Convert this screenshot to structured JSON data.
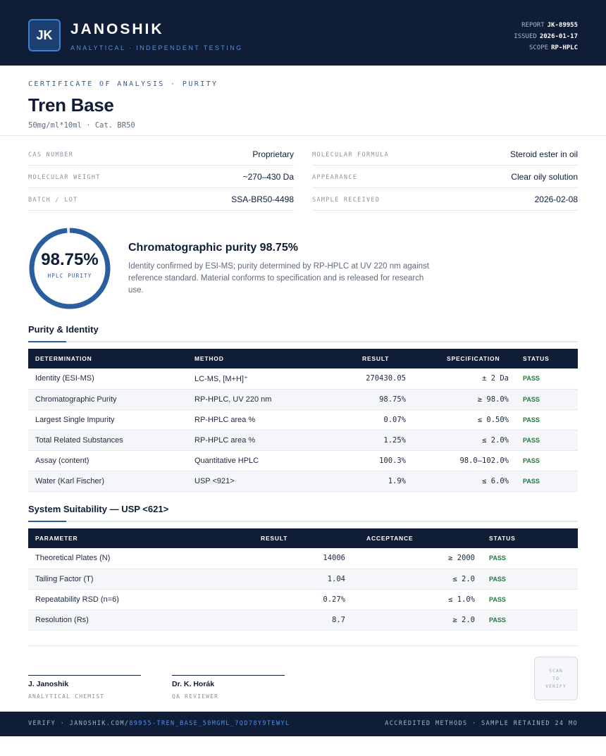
{
  "header": {
    "logo": "JK",
    "brand": "JANOSHIK",
    "tagline": "ANALYTICAL · INDEPENDENT TESTING",
    "report_label": "REPORT",
    "report_value": "JK-89955",
    "issued_label": "ISSUED",
    "issued_value": "2026-01-17",
    "scope_label": "SCOPE",
    "scope_value": "RP-HPLC"
  },
  "doc": {
    "eyebrow": "CERTIFICATE OF ANALYSIS · PURITY",
    "title": "Tren Base",
    "subtitle": "50mg/ml*10ml  ·  Cat. BR50"
  },
  "properties": [
    {
      "label": "CAS NUMBER",
      "value": "Proprietary"
    },
    {
      "label": "MOLECULAR FORMULA",
      "value": "Steroid ester in oil"
    },
    {
      "label": "MOLECULAR WEIGHT",
      "value": "~270–430 Da"
    },
    {
      "label": "APPEARANCE",
      "value": "Clear oily solution"
    },
    {
      "label": "BATCH / LOT",
      "value": "SSA-BR50-4498"
    },
    {
      "label": "SAMPLE RECEIVED",
      "value": "2026-02-08"
    }
  ],
  "purity": {
    "value_text": "98.75%",
    "fraction": 0.9875,
    "label": "HPLC PURITY",
    "summary_title": "Chromatographic purity 98.75%",
    "summary_text": "Identity confirmed by ESI-MS; purity determined by RP-HPLC at UV 220 nm against reference standard. Material conforms to specification and is released for research use."
  },
  "purity_section": {
    "title": "Purity & Identity",
    "headers": [
      "DETERMINATION",
      "METHOD",
      "RESULT",
      "SPECIFICATION",
      "STATUS"
    ],
    "rows": [
      [
        "Identity (ESI-MS)",
        "LC-MS, [M+H]⁺",
        "270430.05",
        "± 2 Da",
        "PASS"
      ],
      [
        "Chromatographic Purity",
        "RP-HPLC, UV 220 nm",
        "98.75%",
        "≥ 98.0%",
        "PASS"
      ],
      [
        "Largest Single Impurity",
        "RP-HPLC area %",
        "0.07%",
        "≤ 0.50%",
        "PASS"
      ],
      [
        "Total Related Substances",
        "RP-HPLC area %",
        "1.25%",
        "≤ 2.0%",
        "PASS"
      ],
      [
        "Assay (content)",
        "Quantitative HPLC",
        "100.3%",
        "98.0–102.0%",
        "PASS"
      ],
      [
        "Water (Karl Fischer)",
        "USP <921>",
        "1.9%",
        "≤ 6.0%",
        "PASS"
      ]
    ]
  },
  "suitability_section": {
    "title": "System Suitability — USP <621>",
    "headers": [
      "PARAMETER",
      "RESULT",
      "ACCEPTANCE",
      "STATUS"
    ],
    "rows": [
      [
        "Theoretical Plates (N)",
        "14006",
        "≥ 2000",
        "PASS"
      ],
      [
        "Tailing Factor (T)",
        "1.04",
        "≤ 2.0",
        "PASS"
      ],
      [
        "Repeatability RSD (n=6)",
        "0.27%",
        "≤ 1.0%",
        "PASS"
      ],
      [
        "Resolution (Rs)",
        "8.7",
        "≥ 2.0",
        "PASS"
      ]
    ]
  },
  "signatures": [
    {
      "name": "J. Janoshik",
      "role": "ANALYTICAL CHEMIST"
    },
    {
      "name": "Dr. K. Horák",
      "role": "QA REVIEWER"
    }
  ],
  "qr": {
    "line1": "SCAN",
    "line2": "TO",
    "line3": "VERIFY"
  },
  "footer": {
    "verify_prefix": "VERIFY · JANOSHIK.COM/",
    "verify_link": "89955-TREN_BASE_50MGML_7QD78Y9TEWYL",
    "right": "ACCREDITED METHODS · SAMPLE RETAINED 24 MO"
  },
  "colors": {
    "navy": "#0f1d36",
    "accent": "#2a5e9e",
    "pass": "#1f7a3d"
  }
}
